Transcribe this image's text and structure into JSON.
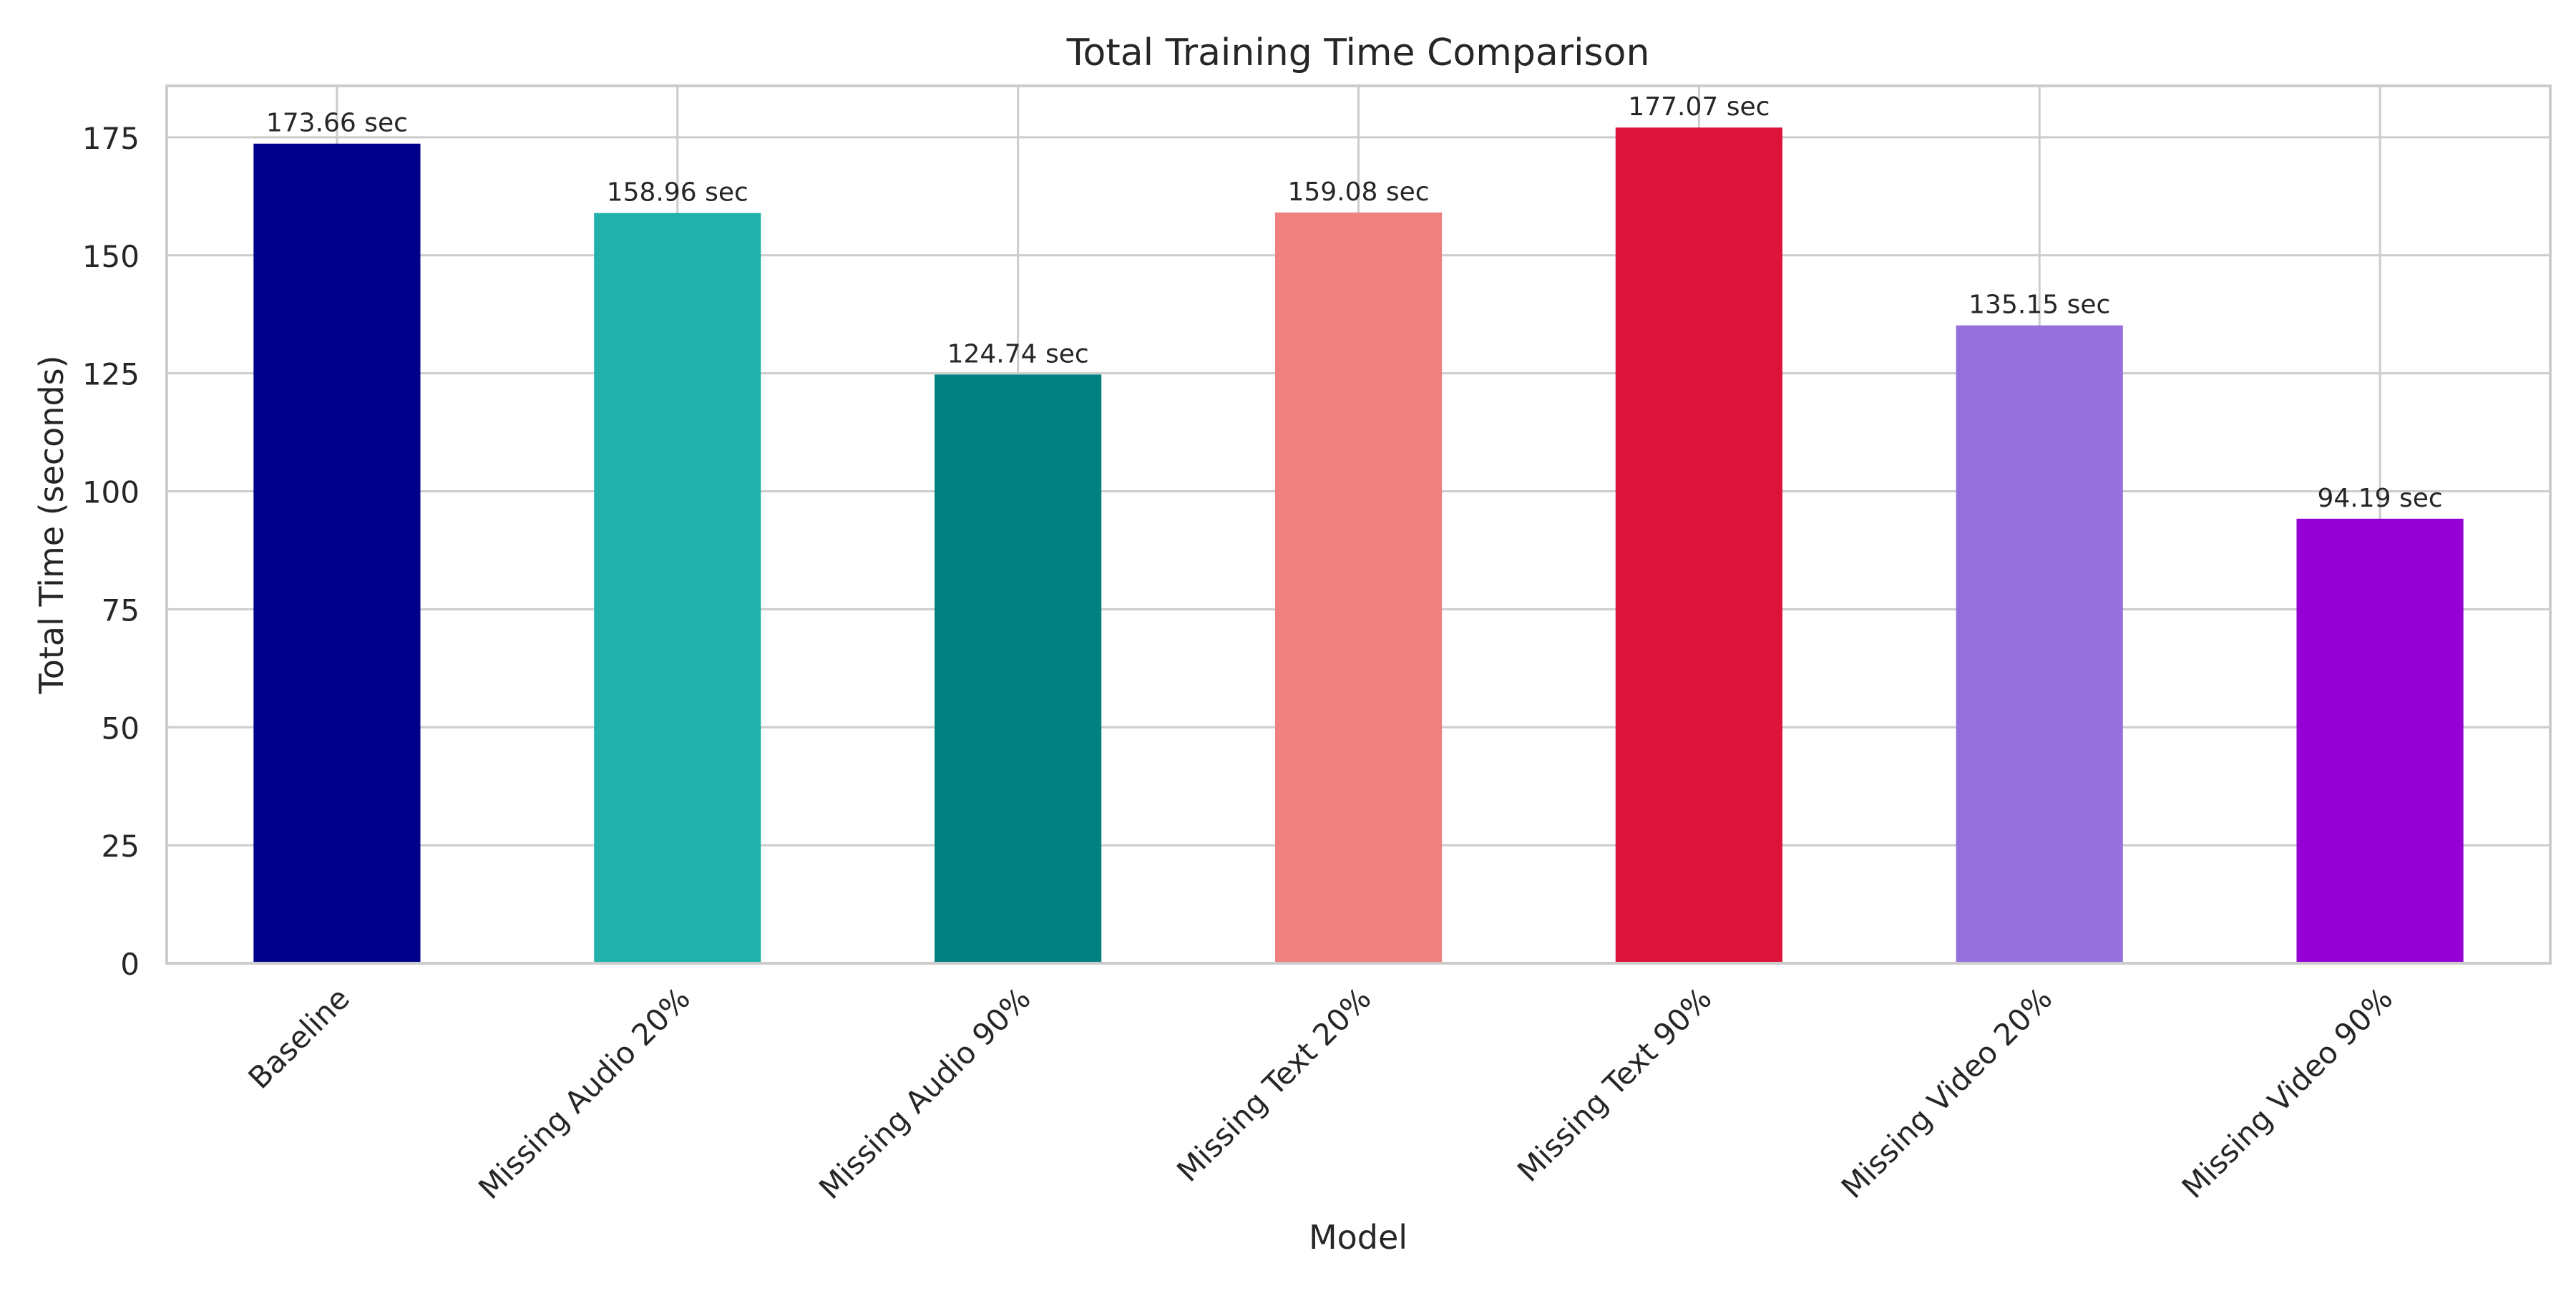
{
  "chart_data": {
    "type": "bar",
    "title": "Total Training Time Comparison",
    "xlabel": "Model",
    "ylabel": "Total Time (seconds)",
    "categories": [
      "Baseline",
      "Missing Audio 20%",
      "Missing Audio 90%",
      "Missing Text 20%",
      "Missing Text 90%",
      "Missing Video 20%",
      "Missing Video 90%"
    ],
    "values": [
      173.66,
      158.96,
      124.74,
      159.08,
      177.07,
      135.15,
      94.19
    ],
    "value_labels": [
      "173.66 sec",
      "158.96 sec",
      "124.74 sec",
      "159.08 sec",
      "177.07 sec",
      "135.15 sec",
      "94.19 sec"
    ],
    "colors": [
      "#00008B",
      "#20B2AA",
      "#008080",
      "#F08080",
      "#DC143C",
      "#9370DB",
      "#9400D3"
    ],
    "ylim": [
      0,
      185.9
    ],
    "yticks": [
      0,
      25,
      50,
      75,
      100,
      125,
      150,
      175
    ],
    "grid": true,
    "legend": "none"
  }
}
